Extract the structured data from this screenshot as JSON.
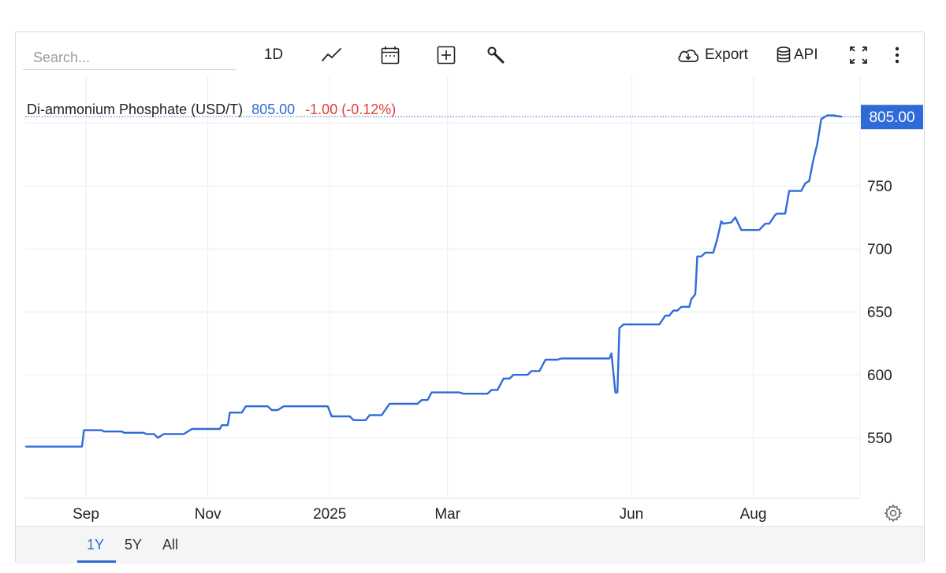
{
  "toolbar": {
    "search_placeholder": "Search...",
    "interval_label": "1D",
    "export_label": "Export",
    "api_label": "API",
    "icons": [
      "line-chart-icon",
      "calendar-icon",
      "plus-square-icon",
      "wrench-icon",
      "cloud-download-icon",
      "database-icon",
      "fullscreen-icon",
      "more-vertical-icon"
    ]
  },
  "legend": {
    "name": "Di-ammonium Phosphate (USD/T)",
    "price": "805.00",
    "change": "-1.00 (-0.12%)"
  },
  "last_price_tag": "805.00",
  "ranges": {
    "items": [
      "1Y",
      "5Y",
      "All"
    ],
    "active": "1Y"
  },
  "colors": {
    "line": "#2f6bd8",
    "negative": "#e0413a",
    "tag_bg": "#2f6bd8"
  },
  "chart_data": {
    "type": "line",
    "title": "Di-ammonium Phosphate (USD/T)",
    "xlabel": "",
    "ylabel": "",
    "x_ticks": [
      "Sep",
      "Nov",
      "2025",
      "Mar",
      "Jun",
      "Aug"
    ],
    "y_ticks": [
      550,
      600,
      650,
      700,
      750
    ],
    "ylim": [
      502,
      812
    ],
    "grid": true,
    "series": [
      {
        "name": "Di-ammonium Phosphate (USD/T)",
        "points": [
          [
            "2024-08-02",
            543
          ],
          [
            "2024-08-30",
            543
          ],
          [
            "2024-08-31",
            556
          ],
          [
            "2024-09-09",
            556
          ],
          [
            "2024-09-10",
            555
          ],
          [
            "2024-09-19",
            555
          ],
          [
            "2024-09-20",
            554
          ],
          [
            "2024-09-30",
            554
          ],
          [
            "2024-10-01",
            553
          ],
          [
            "2024-10-05",
            553
          ],
          [
            "2024-10-07",
            550
          ],
          [
            "2024-10-10",
            553
          ],
          [
            "2024-10-20",
            553
          ],
          [
            "2024-10-24",
            557
          ],
          [
            "2024-11-07",
            557
          ],
          [
            "2024-11-08",
            560
          ],
          [
            "2024-11-11",
            560
          ],
          [
            "2024-11-12",
            570
          ],
          [
            "2024-11-18",
            570
          ],
          [
            "2024-11-20",
            575
          ],
          [
            "2024-12-01",
            575
          ],
          [
            "2024-12-03",
            572
          ],
          [
            "2024-12-06",
            572
          ],
          [
            "2024-12-09",
            575
          ],
          [
            "2024-12-31",
            575
          ],
          [
            "2025-01-02",
            567
          ],
          [
            "2025-01-11",
            567
          ],
          [
            "2025-01-13",
            564
          ],
          [
            "2025-01-19",
            564
          ],
          [
            "2025-01-21",
            568
          ],
          [
            "2025-01-27",
            568
          ],
          [
            "2025-01-31",
            577
          ],
          [
            "2025-02-14",
            577
          ],
          [
            "2025-02-16",
            580
          ],
          [
            "2025-02-19",
            580
          ],
          [
            "2025-02-21",
            586
          ],
          [
            "2025-03-07",
            586
          ],
          [
            "2025-03-09",
            585
          ],
          [
            "2025-03-21",
            585
          ],
          [
            "2025-03-23",
            588
          ],
          [
            "2025-03-26",
            588
          ],
          [
            "2025-03-29",
            597
          ],
          [
            "2025-04-01",
            597
          ],
          [
            "2025-04-03",
            600
          ],
          [
            "2025-04-10",
            600
          ],
          [
            "2025-04-12",
            603
          ],
          [
            "2025-04-16",
            603
          ],
          [
            "2025-04-19",
            612
          ],
          [
            "2025-04-25",
            612
          ],
          [
            "2025-04-27",
            613
          ],
          [
            "2025-05-21",
            613
          ],
          [
            "2025-05-22",
            617
          ],
          [
            "2025-05-24",
            586
          ],
          [
            "2025-05-25",
            586
          ],
          [
            "2025-05-26",
            637
          ],
          [
            "2025-05-28",
            640
          ],
          [
            "2025-06-15",
            640
          ],
          [
            "2025-06-18",
            647
          ],
          [
            "2025-06-20",
            647
          ],
          [
            "2025-06-22",
            651
          ],
          [
            "2025-06-24",
            651
          ],
          [
            "2025-06-26",
            654
          ],
          [
            "2025-06-30",
            654
          ],
          [
            "2025-07-01",
            660
          ],
          [
            "2025-07-03",
            664
          ],
          [
            "2025-07-04",
            694
          ],
          [
            "2025-07-06",
            694
          ],
          [
            "2025-07-08",
            697
          ],
          [
            "2025-07-12",
            697
          ],
          [
            "2025-07-14",
            708
          ],
          [
            "2025-07-16",
            722
          ],
          [
            "2025-07-17",
            720
          ],
          [
            "2025-07-21",
            721
          ],
          [
            "2025-07-23",
            725
          ],
          [
            "2025-07-26",
            715
          ],
          [
            "2025-08-04",
            715
          ],
          [
            "2025-08-07",
            720
          ],
          [
            "2025-08-09",
            720
          ],
          [
            "2025-08-12",
            727
          ],
          [
            "2025-08-13",
            728
          ],
          [
            "2025-08-17",
            728
          ],
          [
            "2025-08-19",
            746
          ],
          [
            "2025-08-25",
            746
          ],
          [
            "2025-08-27",
            752
          ],
          [
            "2025-08-29",
            754
          ],
          [
            "2025-08-31",
            770
          ],
          [
            "2025-09-02",
            783
          ],
          [
            "2025-09-04",
            803
          ],
          [
            "2025-09-07",
            806
          ],
          [
            "2025-09-10",
            806
          ],
          [
            "2025-09-14",
            805
          ]
        ]
      }
    ]
  }
}
